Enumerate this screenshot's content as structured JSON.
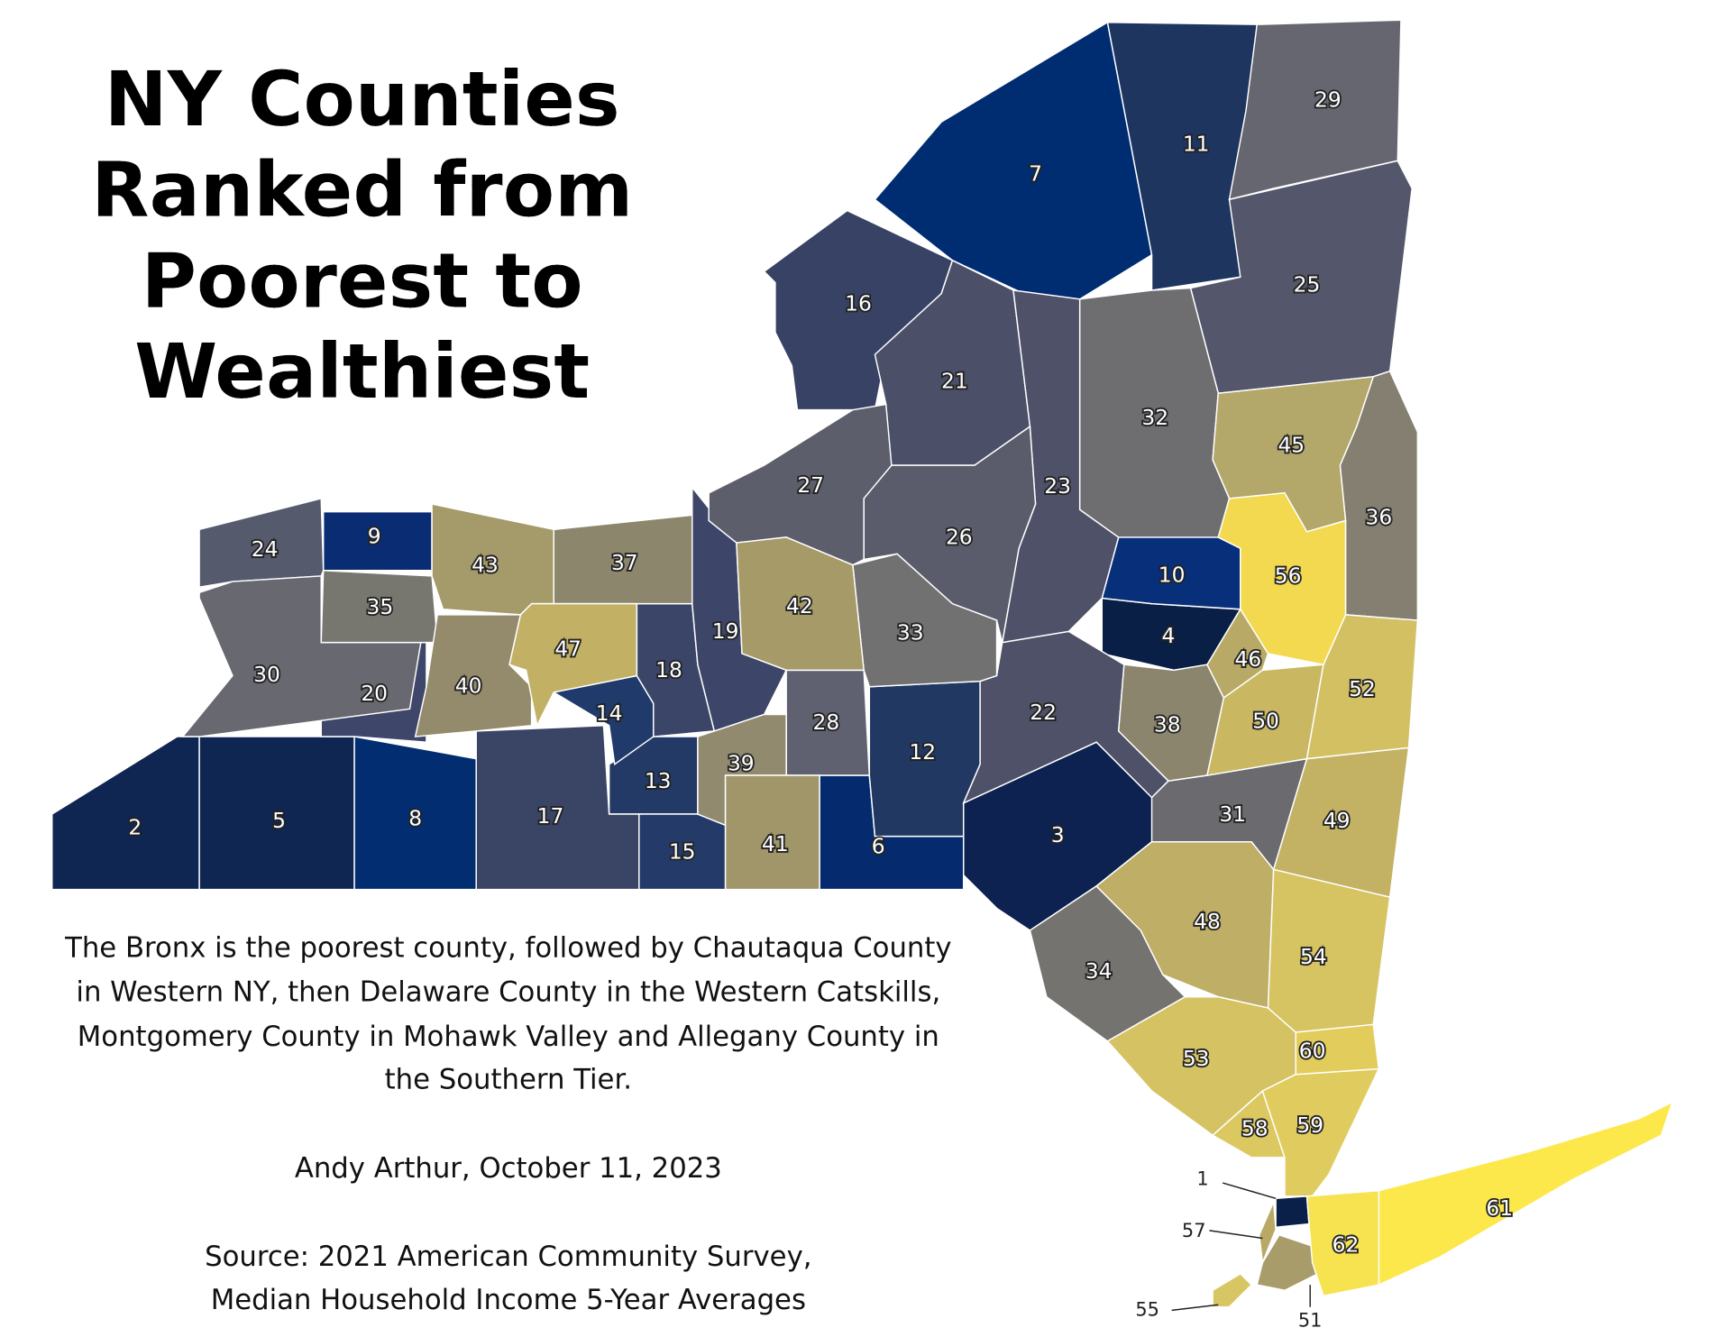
{
  "header": {
    "title": [
      "NY Counties",
      "Ranked from",
      "Poorest to",
      "Wealthiest"
    ]
  },
  "notes": {
    "description": [
      "The Bronx is the poorest county, followed by Chautaqua County",
      "in Western NY, then Delaware County in the Western Catskills,",
      "Montgomery County in Mohawk Valley and Allegany County in",
      "the Southern Tier."
    ],
    "author": "Andy Arthur, October 11, 2023",
    "source": [
      "Source: 2021 American Community Survey,",
      "Median Household Income 5-Year Averages"
    ]
  },
  "counties": [
    {
      "rank": 1,
      "color": "#0b2048"
    },
    {
      "rank": 2,
      "color": "#0f2552"
    },
    {
      "rank": 3,
      "color": "#0d2250"
    },
    {
      "rank": 4,
      "color": "#0a1f45"
    },
    {
      "rank": 5,
      "color": "#0f2552"
    },
    {
      "rank": 6,
      "color": "#052a6e"
    },
    {
      "rank": 7,
      "color": "#002d72"
    },
    {
      "rank": 8,
      "color": "#022d70"
    },
    {
      "rank": 9,
      "color": "#0a2c72"
    },
    {
      "rank": 10,
      "color": "#08307a"
    },
    {
      "rank": 11,
      "color": "#1e3560"
    },
    {
      "rank": 12,
      "color": "#213863"
    },
    {
      "rank": 13,
      "color": "#233a66"
    },
    {
      "rank": 14,
      "color": "#1f3a6b"
    },
    {
      "rank": 15,
      "color": "#243b6a"
    },
    {
      "rank": 16,
      "color": "#384265"
    },
    {
      "rank": 17,
      "color": "#3a4566"
    },
    {
      "rank": 18,
      "color": "#3b4568"
    },
    {
      "rank": 19,
      "color": "#3d4668"
    },
    {
      "rank": 20,
      "color": "#3e4769"
    },
    {
      "rank": 21,
      "color": "#4b5068"
    },
    {
      "rank": 22,
      "color": "#4e5167"
    },
    {
      "rank": 23,
      "color": "#4e5168"
    },
    {
      "rank": 24,
      "color": "#565a6d"
    },
    {
      "rank": 25,
      "color": "#54576b"
    },
    {
      "rank": 26,
      "color": "#5a5c6b"
    },
    {
      "rank": 27,
      "color": "#5d5e6b"
    },
    {
      "rank": 28,
      "color": "#606170"
    },
    {
      "rank": 29,
      "color": "#65666f"
    },
    {
      "rank": 30,
      "color": "#676870"
    },
    {
      "rank": 31,
      "color": "#6a6a6f"
    },
    {
      "rank": 32,
      "color": "#6e6e71"
    },
    {
      "rank": 33,
      "color": "#727171"
    },
    {
      "rank": 34,
      "color": "#747370"
    },
    {
      "rank": 35,
      "color": "#77766f"
    },
    {
      "rank": 36,
      "color": "#847f70"
    },
    {
      "rank": 37,
      "color": "#8c866d"
    },
    {
      "rank": 38,
      "color": "#8c856d"
    },
    {
      "rank": 39,
      "color": "#928a6e"
    },
    {
      "rank": 40,
      "color": "#948b6c"
    },
    {
      "rank": 41,
      "color": "#a09669"
    },
    {
      "rank": 42,
      "color": "#a69a68"
    },
    {
      "rank": 43,
      "color": "#a59a6a"
    },
    {
      "rank": 45,
      "color": "#b4a76a"
    },
    {
      "rank": 46,
      "color": "#b8aa66"
    },
    {
      "rank": 47,
      "color": "#c2b164"
    },
    {
      "rank": 48,
      "color": "#bfae66"
    },
    {
      "rank": 49,
      "color": "#c3b264"
    },
    {
      "rank": 50,
      "color": "#c9b762"
    },
    {
      "rank": 51,
      "color": "#a89c6a"
    },
    {
      "rank": 52,
      "color": "#d3c063"
    },
    {
      "rank": 53,
      "color": "#d5c262"
    },
    {
      "rank": 54,
      "color": "#d6c362"
    },
    {
      "rank": 55,
      "color": "#d8c563"
    },
    {
      "rank": 56,
      "color": "#f2d94f"
    },
    {
      "rank": 57,
      "color": "#b8aa66"
    },
    {
      "rank": 58,
      "color": "#dcc860"
    },
    {
      "rank": 59,
      "color": "#e0cb5e"
    },
    {
      "rank": 60,
      "color": "#e2cd5c"
    },
    {
      "rank": 61,
      "color": "#fce84a"
    },
    {
      "rank": 62,
      "color": "#f7e250"
    }
  ]
}
